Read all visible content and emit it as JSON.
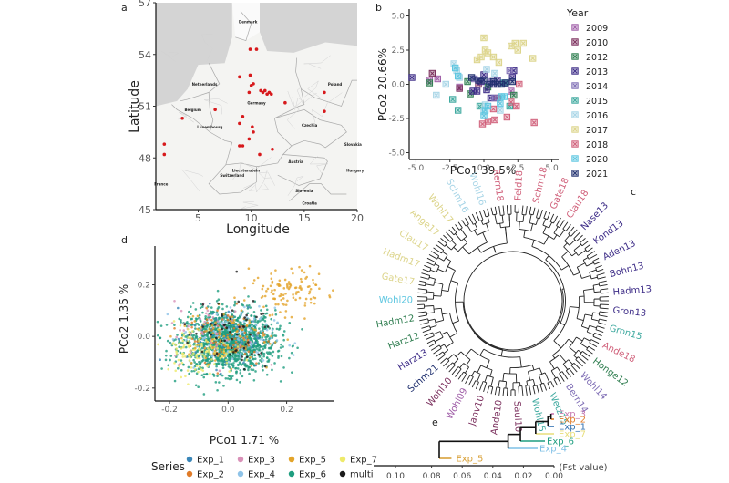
{
  "chart_data": [
    {
      "panel": "a",
      "type": "scatter",
      "subtype": "map",
      "panel_label": "a",
      "xlabel": "Longitude",
      "ylabel": "Latitude",
      "xlim": [
        1,
        20
      ],
      "ylim": [
        45,
        57
      ],
      "xticks": [
        5,
        10,
        15,
        20
      ],
      "yticks": [
        45,
        48,
        51,
        54,
        57
      ],
      "marker_color": "#d7191c",
      "country_labels": [
        {
          "name": "Denmark",
          "lon": 9.7,
          "lat": 55.8
        },
        {
          "name": "Netherlands",
          "lon": 5.6,
          "lat": 52.2
        },
        {
          "name": "Belgium",
          "lon": 4.5,
          "lat": 50.7
        },
        {
          "name": "Luxembourg",
          "lon": 6.1,
          "lat": 49.7
        },
        {
          "name": "Germany",
          "lon": 10.5,
          "lat": 51.1
        },
        {
          "name": "Poland",
          "lon": 17.9,
          "lat": 52.2
        },
        {
          "name": "Czechia",
          "lon": 15.5,
          "lat": 49.8
        },
        {
          "name": "Slovakia",
          "lon": 19.6,
          "lat": 48.7
        },
        {
          "name": "Austria",
          "lon": 14.2,
          "lat": 47.7
        },
        {
          "name": "Liechtenstein",
          "lon": 9.5,
          "lat": 47.2
        },
        {
          "name": "Switzerland",
          "lon": 8.2,
          "lat": 46.9
        },
        {
          "name": "France",
          "lon": 1.5,
          "lat": 46.4
        },
        {
          "name": "Slovenia",
          "lon": 15.0,
          "lat": 46.0
        },
        {
          "name": "Croatia",
          "lon": 15.5,
          "lat": 45.3
        },
        {
          "name": "Hungary",
          "lon": 19.8,
          "lat": 47.2
        }
      ],
      "sites": [
        {
          "lon": 9.9,
          "lat": 54.3
        },
        {
          "lon": 10.5,
          "lat": 54.3
        },
        {
          "lon": 8.9,
          "lat": 52.7
        },
        {
          "lon": 9.9,
          "lat": 52.8
        },
        {
          "lon": 10.0,
          "lat": 52.2
        },
        {
          "lon": 10.2,
          "lat": 52.3
        },
        {
          "lon": 9.8,
          "lat": 51.8
        },
        {
          "lon": 10.9,
          "lat": 51.9
        },
        {
          "lon": 11.1,
          "lat": 51.8
        },
        {
          "lon": 11.3,
          "lat": 51.9
        },
        {
          "lon": 11.5,
          "lat": 51.7
        },
        {
          "lon": 11.7,
          "lat": 51.8
        },
        {
          "lon": 11.9,
          "lat": 51.7
        },
        {
          "lon": 13.2,
          "lat": 51.2
        },
        {
          "lon": 16.9,
          "lat": 51.8
        },
        {
          "lon": 16.9,
          "lat": 50.7
        },
        {
          "lon": 6.6,
          "lat": 50.8
        },
        {
          "lon": 9.2,
          "lat": 50.4
        },
        {
          "lon": 8.9,
          "lat": 50.0
        },
        {
          "lon": 10.1,
          "lat": 49.8
        },
        {
          "lon": 10.2,
          "lat": 49.5
        },
        {
          "lon": 9.8,
          "lat": 49.1
        },
        {
          "lon": 8.9,
          "lat": 48.7
        },
        {
          "lon": 9.2,
          "lat": 48.7
        },
        {
          "lon": 12.0,
          "lat": 48.5
        },
        {
          "lon": 10.8,
          "lat": 48.2
        },
        {
          "lon": 1.8,
          "lat": 48.8
        },
        {
          "lon": 1.8,
          "lat": 48.2
        },
        {
          "lon": 3.5,
          "lat": 50.3
        }
      ]
    },
    {
      "panel": "b",
      "type": "scatter",
      "panel_label": "b",
      "xlabel": "PCo1 39.5%",
      "ylabel": "PCo2 20.66%",
      "xlim": [
        -5.5,
        5.5
      ],
      "ylim": [
        -5.5,
        5.5
      ],
      "xticks": [
        "-5.0",
        "-2.5",
        "0.0",
        "2.5",
        "5.0"
      ],
      "yticks": [
        "-5.0",
        "-2.5",
        "0.0",
        "2.5",
        "5.0"
      ],
      "legend_title": "Year",
      "legend_position": "right",
      "series": [
        {
          "name": "2009",
          "color": "#a05fa8",
          "points": [
            [
              -4.0,
              0.3
            ],
            [
              -3.4,
              0.4
            ],
            [
              -1.8,
              -0.2
            ],
            [
              2.0,
              -0.5
            ]
          ]
        },
        {
          "name": "2010",
          "color": "#7a2e5c",
          "points": [
            [
              -3.8,
              0.8
            ],
            [
              -1.8,
              -0.3
            ],
            [
              -0.4,
              0.0
            ],
            [
              1.0,
              -1.0
            ]
          ]
        },
        {
          "name": "2012",
          "color": "#2e7d4f",
          "points": [
            [
              -4.0,
              0.1
            ],
            [
              -1.2,
              0.2
            ],
            [
              -1.0,
              -0.7
            ],
            [
              2.2,
              -0.8
            ],
            [
              0.3,
              -0.2
            ]
          ]
        },
        {
          "name": "2013",
          "color": "#3b2a86",
          "points": [
            [
              -5.3,
              0.5
            ],
            [
              -0.8,
              -0.5
            ],
            [
              -0.5,
              -0.5
            ],
            [
              0.0,
              0.7
            ],
            [
              0.2,
              -0.4
            ],
            [
              0.7,
              0.0
            ],
            [
              1.0,
              0.3
            ],
            [
              2.1,
              0.5
            ],
            [
              2.2,
              1.0
            ],
            [
              -0.2,
              0.2
            ],
            [
              0.5,
              -1.0
            ]
          ]
        },
        {
          "name": "2014",
          "color": "#7f6eb5",
          "points": [
            [
              -0.7,
              0.4
            ],
            [
              0.8,
              -1.0
            ],
            [
              1.9,
              1.0
            ],
            [
              1.5,
              0.1
            ],
            [
              0.6,
              0.2
            ]
          ]
        },
        {
          "name": "2015",
          "color": "#3ea99f",
          "points": [
            [
              -2.3,
              -1.1
            ],
            [
              -1.9,
              -1.9
            ],
            [
              -0.3,
              -1.6
            ],
            [
              1.9,
              -1.6
            ],
            [
              1.5,
              0.1
            ]
          ]
        },
        {
          "name": "2016",
          "color": "#a6d4e6",
          "points": [
            [
              -3.5,
              -0.8
            ],
            [
              -2.8,
              0.0
            ],
            [
              -2.2,
              1.5
            ],
            [
              -2.0,
              1.0
            ],
            [
              -1.8,
              0.5
            ],
            [
              0.2,
              1.1
            ],
            [
              0.8,
              0.8
            ],
            [
              0.0,
              -2.0
            ],
            [
              0.1,
              -1.5
            ],
            [
              1.2,
              -1.9
            ]
          ]
        },
        {
          "name": "2017",
          "color": "#dcd48a",
          "points": [
            [
              0.0,
              3.4
            ],
            [
              -0.5,
              1.8
            ],
            [
              -0.2,
              2.0
            ],
            [
              0.1,
              2.5
            ],
            [
              0.3,
              2.3
            ],
            [
              0.7,
              2.0
            ],
            [
              1.1,
              1.6
            ],
            [
              2.0,
              2.8
            ],
            [
              2.3,
              3.0
            ],
            [
              2.5,
              2.5
            ],
            [
              2.9,
              3.0
            ],
            [
              3.6,
              1.9
            ]
          ]
        },
        {
          "name": "2018",
          "color": "#d0607a",
          "points": [
            [
              -0.1,
              -2.9
            ],
            [
              0.3,
              -2.7
            ],
            [
              0.8,
              -2.6
            ],
            [
              1.7,
              -2.4
            ],
            [
              2.4,
              -1.6
            ],
            [
              2.6,
              0.0
            ],
            [
              3.7,
              -2.8
            ],
            [
              0.7,
              -1.8
            ],
            [
              2.0,
              -1.3
            ]
          ]
        },
        {
          "name": "2020",
          "color": "#5cc6e0",
          "points": [
            [
              -2.1,
              1.2
            ],
            [
              -1.9,
              0.6
            ],
            [
              0.0,
              -2.3
            ],
            [
              0.1,
              -1.9
            ],
            [
              0.3,
              -1.6
            ],
            [
              1.2,
              -1.4
            ],
            [
              1.3,
              -0.9
            ],
            [
              1.5,
              -0.9
            ]
          ]
        },
        {
          "name": "2021",
          "color": "#1f2f6e",
          "points": [
            [
              -0.4,
              0.3
            ],
            [
              0.4,
              0.0
            ],
            [
              0.7,
              0.2
            ],
            [
              1.0,
              0.0
            ],
            [
              1.3,
              0.0
            ],
            [
              1.6,
              0.1
            ],
            [
              2.1,
              0.2
            ],
            [
              -0.9,
              0.5
            ],
            [
              0.0,
              0.3
            ]
          ]
        }
      ]
    },
    {
      "panel": "c",
      "type": "tree",
      "subtype": "circular-dendrogram",
      "panel_label": "c",
      "visible_leaf_labels": [
        {
          "label": "Rern18",
          "color": "#d0607a"
        },
        {
          "label": "Feld18",
          "color": "#d0607a"
        },
        {
          "label": "Schm18",
          "color": "#d0607a"
        },
        {
          "label": "Gate18",
          "color": "#d0607a"
        },
        {
          "label": "Clau18",
          "color": "#d0607a"
        },
        {
          "label": "Nase13",
          "color": "#3b2a86"
        },
        {
          "label": "Kond13",
          "color": "#3b2a86"
        },
        {
          "label": "Aden13",
          "color": "#3b2a86"
        },
        {
          "label": "Bohn13",
          "color": "#3b2a86"
        },
        {
          "label": "Hadm13",
          "color": "#3b2a86"
        },
        {
          "label": "Gron13",
          "color": "#3b2a86"
        },
        {
          "label": "Gron15",
          "color": "#3ea99f"
        },
        {
          "label": "Ande18",
          "color": "#d0607a"
        },
        {
          "label": "Honge12",
          "color": "#2e7d4f"
        },
        {
          "label": "Wohl14",
          "color": "#7f6eb5"
        },
        {
          "label": "Bern14",
          "color": "#7f6eb5"
        },
        {
          "label": "Wetz15",
          "color": "#3ea99f"
        },
        {
          "label": "Wohl15",
          "color": "#3ea99f"
        },
        {
          "label": "Saul10",
          "color": "#7a2e5c"
        },
        {
          "label": "Ande10",
          "color": "#7a2e5c"
        },
        {
          "label": "Janv10",
          "color": "#7a2e5c"
        },
        {
          "label": "Wohl09",
          "color": "#a05fa8"
        },
        {
          "label": "Wohl10",
          "color": "#7a2e5c"
        },
        {
          "label": "Schm21",
          "color": "#1f2f6e"
        },
        {
          "label": "Harz13",
          "color": "#3b2a86"
        },
        {
          "label": "Harz12",
          "color": "#2e7d4f"
        },
        {
          "label": "Hadm12",
          "color": "#2e7d4f"
        },
        {
          "label": "Wohl20",
          "color": "#5cc6e0"
        },
        {
          "label": "Gate17",
          "color": "#dcd48a"
        },
        {
          "label": "Hadm17",
          "color": "#dcd48a"
        },
        {
          "label": "Clau17",
          "color": "#dcd48a"
        },
        {
          "label": "Ange17",
          "color": "#dcd48a"
        },
        {
          "label": "Wohl17",
          "color": "#dcd48a"
        },
        {
          "label": "Schm16",
          "color": "#a6d4e6"
        },
        {
          "label": "Wohl16",
          "color": "#a6d4e6"
        }
      ]
    },
    {
      "panel": "d",
      "type": "scatter",
      "panel_label": "d",
      "xlabel": "PCo1 1.71 %",
      "ylabel": "PCo2 1.35 %",
      "xlim": [
        -0.25,
        0.36
      ],
      "ylim": [
        -0.25,
        0.35
      ],
      "xticks": [
        "-0.2",
        "0.0",
        "0.2"
      ],
      "yticks": [
        "-0.2",
        "0.0",
        "0.2"
      ],
      "legend_title": "Series",
      "legend_position": "bottom",
      "series": [
        {
          "name": "Exp_1",
          "color": "#3a86b8",
          "center": [
            0.0,
            0.0
          ],
          "spread": [
            0.07,
            0.06
          ],
          "n": 60
        },
        {
          "name": "Exp_2",
          "color": "#e07b28",
          "center": [
            0.0,
            0.0
          ],
          "spread": [
            0.07,
            0.06
          ],
          "n": 80
        },
        {
          "name": "Exp_3",
          "color": "#d991b8",
          "center": [
            -0.05,
            0.02
          ],
          "spread": [
            0.07,
            0.06
          ],
          "n": 60
        },
        {
          "name": "Exp_4",
          "color": "#8ec3e8",
          "center": [
            0.0,
            -0.01
          ],
          "spread": [
            0.08,
            0.06
          ],
          "n": 120
        },
        {
          "name": "Exp_5",
          "color": "#e3a42a",
          "center": [
            0.2,
            0.18
          ],
          "spread": [
            0.06,
            0.05
          ],
          "n": 200
        },
        {
          "name": "Exp_6",
          "color": "#1f9e80",
          "center": [
            0.0,
            -0.02
          ],
          "spread": [
            0.08,
            0.06
          ],
          "n": 1400
        },
        {
          "name": "Exp_7",
          "color": "#eeea6a",
          "center": [
            -0.1,
            -0.05
          ],
          "spread": [
            0.06,
            0.05
          ],
          "n": 120
        },
        {
          "name": "multi",
          "color": "#1a1a1a",
          "center": [
            0.0,
            0.0
          ],
          "spread": [
            0.08,
            0.07
          ],
          "n": 60
        }
      ]
    },
    {
      "panel": "e",
      "type": "tree",
      "subtype": "dendrogram",
      "panel_label": "e",
      "xlabel": "(Fst value)",
      "xticks": [
        "0.10",
        "0.08",
        "0.06",
        "0.04",
        "0.02",
        "0.00"
      ],
      "xlim": [
        0.1,
        0.0
      ],
      "leaves": [
        {
          "label": "Exp_3",
          "color": "#c979b0"
        },
        {
          "label": "Exp_2",
          "color": "#e07b28"
        },
        {
          "label": "Exp_1",
          "color": "#2f6fb0"
        },
        {
          "label": "Exp_7",
          "color": "#e8de7a"
        },
        {
          "label": "Exp_6",
          "color": "#1f9e80"
        },
        {
          "label": "Exp_4",
          "color": "#7fc0e6"
        },
        {
          "label": "Exp_5",
          "color": "#d9a23a"
        }
      ],
      "merges": [
        {
          "a": "Exp_3",
          "b": "Exp_2",
          "height": 0.002
        },
        {
          "a": "Exp_3+2",
          "b": "Exp_1",
          "height": 0.004
        },
        {
          "a": "Exp_3+2+1",
          "b": "Exp_7",
          "height": 0.012
        },
        {
          "a": "Exp_3+2+1+7",
          "b": "Exp_6",
          "height": 0.022
        },
        {
          "a": "Exp_3+2+1+7+6",
          "b": "Exp_4",
          "height": 0.03
        },
        {
          "a": "Exp_3+2+1+7+6+4",
          "b": "Exp_5",
          "height": 0.075
        }
      ]
    }
  ]
}
